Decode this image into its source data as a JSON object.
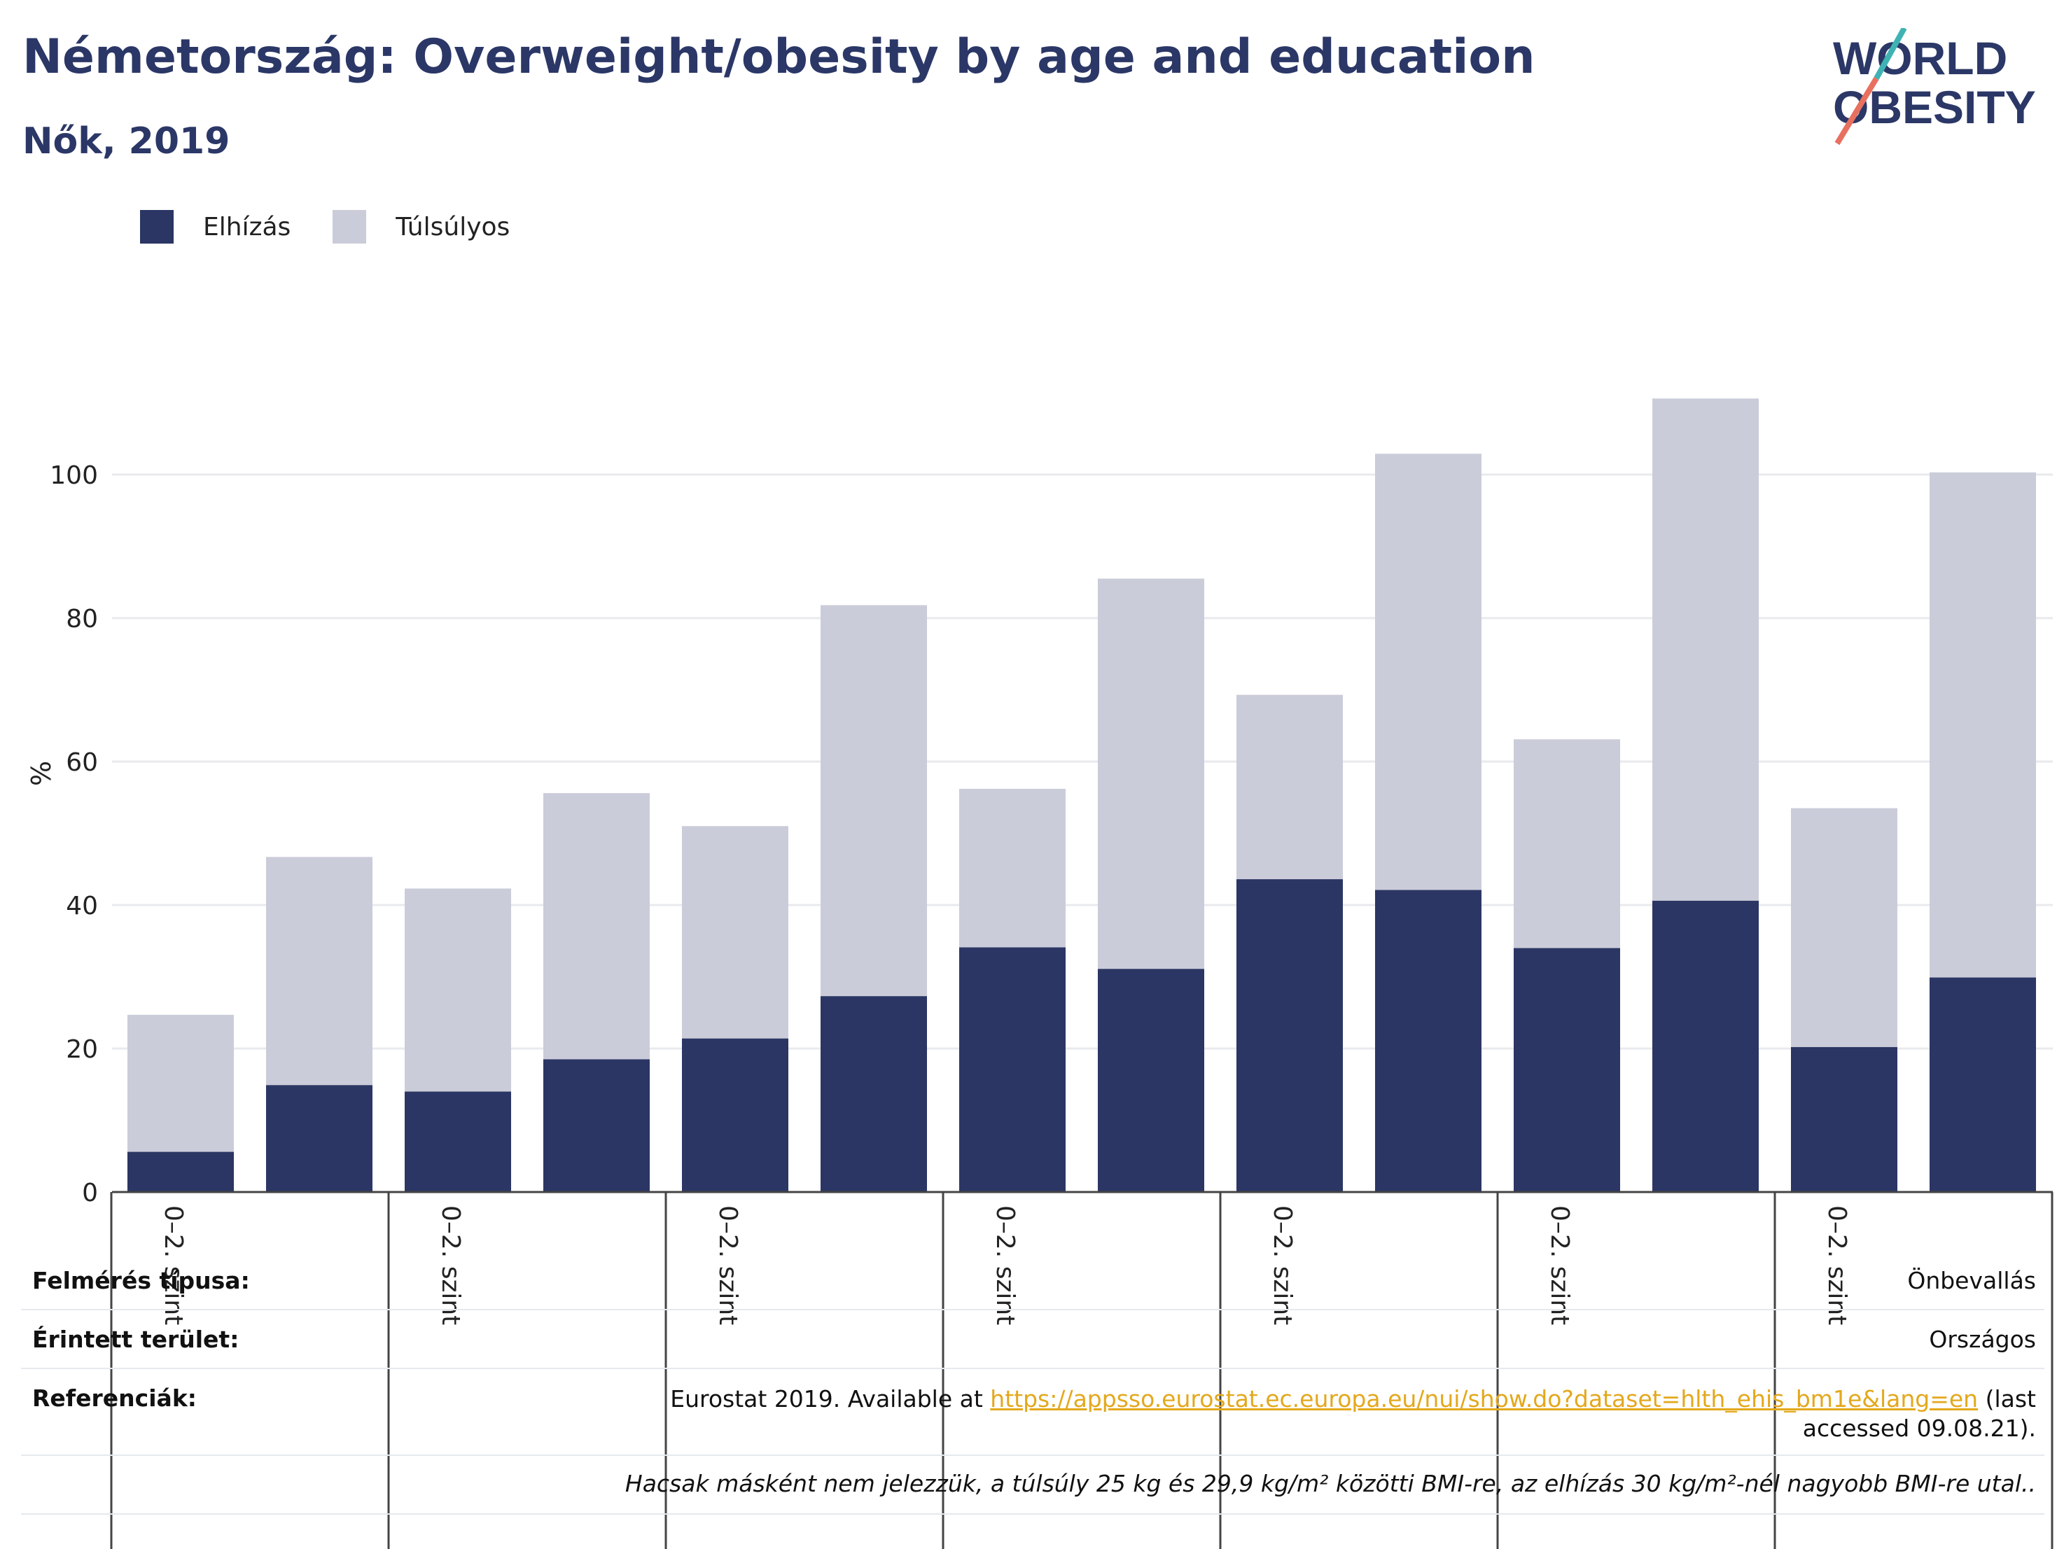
{
  "header": {
    "title": "Németország: Overweight/obesity by age and education",
    "subtitle": "Nők, 2019"
  },
  "logo": {
    "line1": "WORLD",
    "line2": "OBESITY"
  },
  "colors": {
    "obesity": "#2b3664",
    "overweight": "#cbccd9",
    "title": "#2b3766"
  },
  "chart_data": {
    "type": "bar",
    "stacked": true,
    "ylabel": "%",
    "ylim": [
      0,
      115
    ],
    "yticks": [
      0,
      20,
      40,
      60,
      80,
      100
    ],
    "grid": true,
    "legend_position": "top-left",
    "legend": [
      "Elhízás",
      "Túlsúlyos"
    ],
    "group_labels": [
      "0–2. szint",
      "0–2. szint",
      "0–2. szint",
      "0–2. szint",
      "0–2. szint",
      "0–2. szint",
      "0–2. szint"
    ],
    "series": [
      {
        "name": "Elhízás",
        "values": [
          5.6,
          14.9,
          14.0,
          18.5,
          21.4,
          27.3,
          34.1,
          31.1,
          43.6,
          42.1,
          34.0,
          40.6,
          20.2,
          29.9
        ]
      },
      {
        "name": "Túlsúlyos",
        "values": [
          19.1,
          31.8,
          28.3,
          37.1,
          29.6,
          54.5,
          22.1,
          54.4,
          25.7,
          60.8,
          29.1,
          70.0,
          33.3,
          70.4
        ]
      }
    ]
  },
  "footer": {
    "survey_label": "Felmérés típusa:",
    "survey_value": "Önbevallás",
    "area_label": "Érintett terület:",
    "area_value": "Országos",
    "refs_label": "Referenciák:",
    "refs_prefix": "Eurostat 2019. Available at ",
    "refs_link": "https://appsso.eurostat.ec.europa.eu/nui/show.do?dataset=hlth_ehis_bm1e&lang=en",
    "refs_suffix": " (last accessed 09.08.21).",
    "note": "Hacsak másként nem jelezzük, a túlsúly 25 kg és 29,9 kg/m² közötti BMI-re, az elhízás 30 kg/m²-nél nagyobb BMI-re utal.."
  }
}
